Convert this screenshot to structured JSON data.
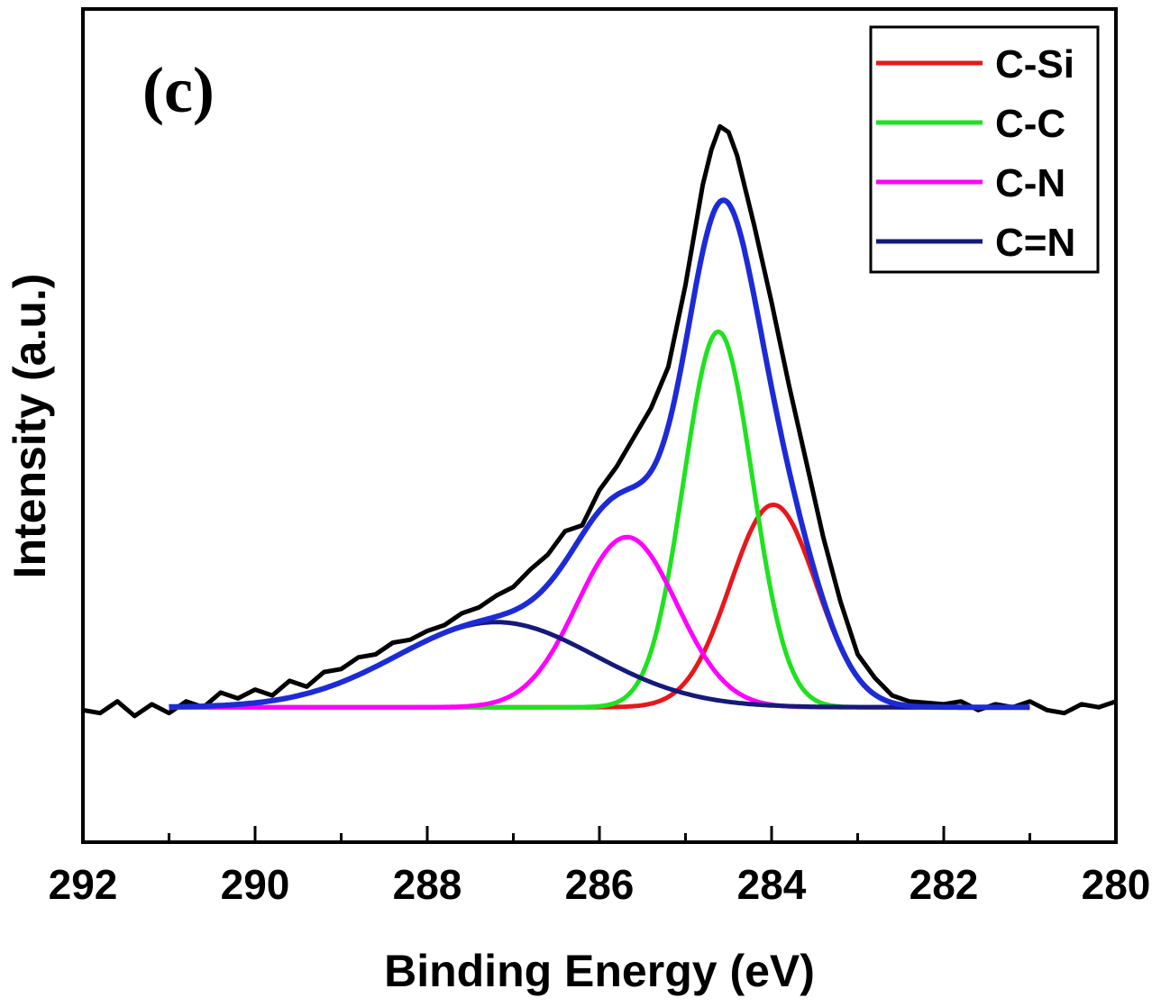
{
  "chart_data": {
    "type": "line",
    "panel_label": "(c)",
    "xlabel": "Binding Energy (eV)",
    "ylabel": "Intensity (a.u.)",
    "xlim": [
      292,
      280
    ],
    "x_reversed": true,
    "ylim": [
      -0.22,
      1.2
    ],
    "y_ticks_labeled": false,
    "x_ticks": [
      292,
      290,
      288,
      286,
      284,
      282,
      280
    ],
    "x_tick_labels": [
      "292",
      "290",
      "288",
      "286",
      "284",
      "282",
      "280"
    ],
    "grid": false,
    "legend_position": "top-right",
    "baseline": 0.01,
    "fit_range": [
      291,
      281
    ],
    "experimental": {
      "color": "#000000",
      "points": [
        [
          292.0,
          0.005
        ],
        [
          291.8,
          0.0
        ],
        [
          291.6,
          0.02
        ],
        [
          291.4,
          -0.005
        ],
        [
          291.2,
          0.015
        ],
        [
          291.0,
          0.0
        ],
        [
          290.8,
          0.02
        ],
        [
          290.6,
          0.01
        ],
        [
          290.4,
          0.035
        ],
        [
          290.2,
          0.025
        ],
        [
          290.0,
          0.04
        ],
        [
          289.8,
          0.03
        ],
        [
          289.6,
          0.055
        ],
        [
          289.4,
          0.045
        ],
        [
          289.2,
          0.07
        ],
        [
          289.0,
          0.075
        ],
        [
          288.8,
          0.095
        ],
        [
          288.6,
          0.1
        ],
        [
          288.4,
          0.12
        ],
        [
          288.2,
          0.125
        ],
        [
          288.0,
          0.14
        ],
        [
          287.8,
          0.15
        ],
        [
          287.6,
          0.17
        ],
        [
          287.4,
          0.18
        ],
        [
          287.2,
          0.2
        ],
        [
          287.0,
          0.215
        ],
        [
          286.8,
          0.245
        ],
        [
          286.6,
          0.27
        ],
        [
          286.4,
          0.31
        ],
        [
          286.2,
          0.32
        ],
        [
          286.0,
          0.38
        ],
        [
          285.8,
          0.42
        ],
        [
          285.6,
          0.47
        ],
        [
          285.4,
          0.52
        ],
        [
          285.2,
          0.59
        ],
        [
          285.0,
          0.73
        ],
        [
          284.8,
          0.9
        ],
        [
          284.7,
          0.96
        ],
        [
          284.6,
          1.0
        ],
        [
          284.5,
          0.99
        ],
        [
          284.4,
          0.95
        ],
        [
          284.2,
          0.83
        ],
        [
          284.0,
          0.7
        ],
        [
          283.8,
          0.56
        ],
        [
          283.6,
          0.43
        ],
        [
          283.4,
          0.3
        ],
        [
          283.2,
          0.19
        ],
        [
          283.0,
          0.1
        ],
        [
          282.8,
          0.06
        ],
        [
          282.6,
          0.03
        ],
        [
          282.4,
          0.02
        ],
        [
          282.0,
          0.015
        ],
        [
          281.8,
          0.02
        ],
        [
          281.6,
          0.005
        ],
        [
          281.4,
          0.015
        ],
        [
          281.2,
          0.01
        ],
        [
          281.0,
          0.02
        ],
        [
          280.8,
          0.005
        ],
        [
          280.6,
          0.0
        ],
        [
          280.4,
          0.015
        ],
        [
          280.2,
          0.01
        ],
        [
          280.0,
          0.02
        ]
      ]
    },
    "series": [
      {
        "name": "C-Si",
        "color": "#e8171b",
        "center": 283.98,
        "amplitude": 0.345,
        "sigma": 0.5
      },
      {
        "name": "C-C",
        "color": "#1fe21f",
        "center": 284.62,
        "amplitude": 0.64,
        "sigma": 0.4
      },
      {
        "name": "C-N",
        "color": "#ff00ff",
        "center": 285.68,
        "amplitude": 0.29,
        "sigma": 0.58
      },
      {
        "name": "C=N",
        "color": "#151a7a",
        "center": 287.2,
        "amplitude": 0.145,
        "sigma": 1.15
      }
    ],
    "envelope": {
      "color": "#1d2bd6"
    }
  }
}
